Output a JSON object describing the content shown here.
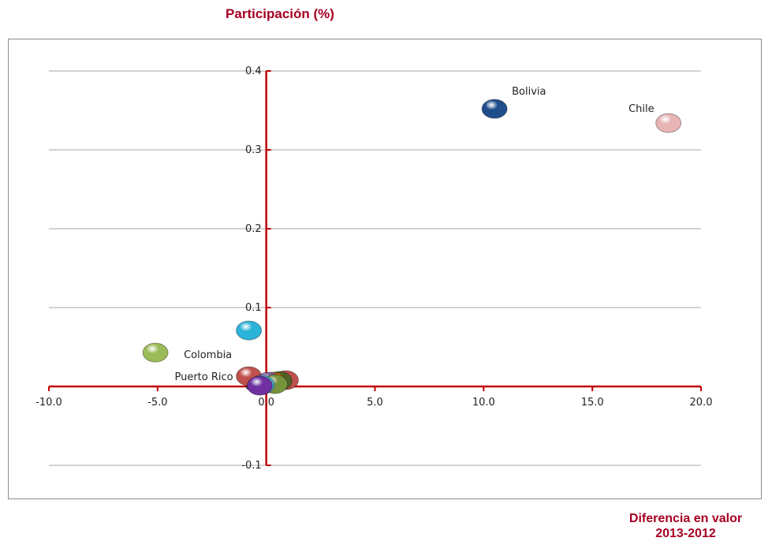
{
  "chart_data": {
    "type": "scatter",
    "title": "Participación (%)",
    "xlabel": [
      "Diferencia en valor",
      "2013-2012"
    ],
    "ylabel": "",
    "xlim": [
      -10,
      20
    ],
    "ylim": [
      -0.1,
      0.4
    ],
    "xticks": [
      "-10.0",
      "-5.0",
      "0.0",
      "5.0",
      "10.0",
      "15.0",
      "20.0"
    ],
    "yticks": [
      "-0.1",
      "0.0",
      "0.1",
      "0.2",
      "0.3",
      "0.4"
    ],
    "grid": true,
    "axis_color": "#c00000",
    "points": [
      {
        "label": "Bolivia",
        "x": 10.5,
        "y": 0.352,
        "color": "#1f4e8c",
        "label_pos": "top-right"
      },
      {
        "label": "Chile",
        "x": 18.5,
        "y": 0.334,
        "color": "#e8b4b4",
        "label_pos": "top-left"
      },
      {
        "label": "",
        "x": -0.8,
        "y": 0.071,
        "color": "#2bb3d9"
      },
      {
        "label": "Colombia",
        "x": -5.1,
        "y": 0.043,
        "color": "#9bbb59",
        "label_pos": "bottom-right"
      },
      {
        "label": "Puerto Rico",
        "x": -0.8,
        "y": 0.013,
        "color": "#c0504d",
        "label_pos": "left"
      },
      {
        "label": "",
        "x": 0.9,
        "y": 0.008,
        "color": "#c0504d"
      },
      {
        "label": "",
        "x": 0.6,
        "y": 0.007,
        "color": "#4f6228"
      },
      {
        "label": "",
        "x": 0.3,
        "y": 0.006,
        "color": "#e46c0a"
      },
      {
        "label": "",
        "x": 0.1,
        "y": 0.006,
        "color": "#8064a2"
      },
      {
        "label": "",
        "x": 0.4,
        "y": 0.003,
        "color": "#77933c"
      },
      {
        "label": "",
        "x": -0.2,
        "y": 0.002,
        "color": "#4bacc6"
      },
      {
        "label": "",
        "x": -0.3,
        "y": 0.001,
        "color": "#7030a0"
      }
    ]
  }
}
